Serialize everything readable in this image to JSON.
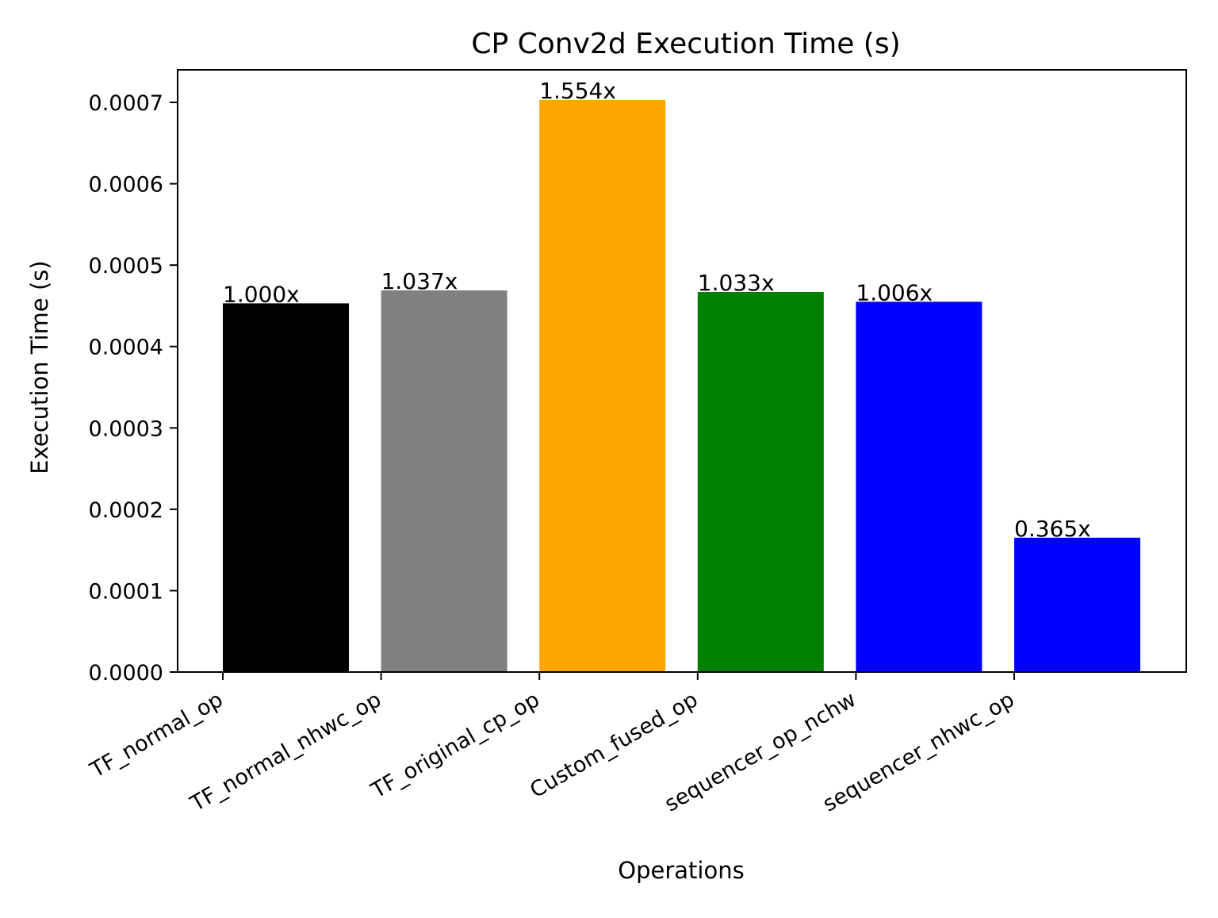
{
  "chart_data": {
    "type": "bar",
    "title": "CP Conv2d Execution Time (s)",
    "xlabel": "Operations",
    "ylabel": "Execution Time (s)",
    "ylim": [
      0,
      0.00074
    ],
    "yticks": [
      "0.0000",
      "0.0001",
      "0.0002",
      "0.0003",
      "0.0004",
      "0.0005",
      "0.0006",
      "0.0007"
    ],
    "categories": [
      "TF_normal_op",
      "TF_normal_nhwc_op",
      "TF_original_cp_op",
      "Custom_fused_op",
      "sequencer_op_nchw",
      "sequencer_nhwc_op"
    ],
    "values": [
      0.000453,
      0.000469,
      0.000703,
      0.000467,
      0.000455,
      0.000165
    ],
    "data_labels": [
      "1.000x",
      "1.037x",
      "1.554x",
      "1.033x",
      "1.006x",
      "0.365x"
    ],
    "colors": [
      "#000000",
      "#808080",
      "#ffa500",
      "#008000",
      "#0000ff",
      "#0000ff"
    ],
    "grid": false,
    "legend": "none"
  }
}
